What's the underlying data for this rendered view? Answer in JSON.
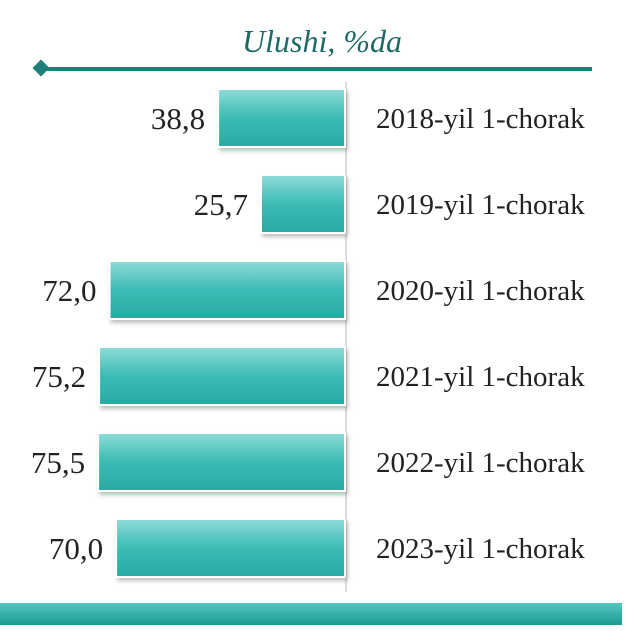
{
  "chart_data": {
    "type": "bar",
    "orientation": "horizontal",
    "direction": "right-to-left",
    "title": "Ulushi, %da",
    "categories": [
      "2018-yil 1-chorak",
      "2019-yil 1-chorak",
      "2020-yil 1-chorak",
      "2021-yil 1-chorak",
      "2022-yil 1-chorak",
      "2023-yil 1-chorak"
    ],
    "values": [
      38.8,
      25.7,
      72.0,
      75.2,
      75.5,
      70.0
    ],
    "value_labels": [
      "38,8",
      "25,7",
      "72,0",
      "75,2",
      "75,5",
      "70,0"
    ],
    "grid": false,
    "legend": "none"
  },
  "colors": {
    "bar_light": "#7fd8d3",
    "bar_dark": "#2bb5ae",
    "accent": "#1f8a83",
    "title": "#1d6b66",
    "bottom_band": "#20a9a3"
  }
}
